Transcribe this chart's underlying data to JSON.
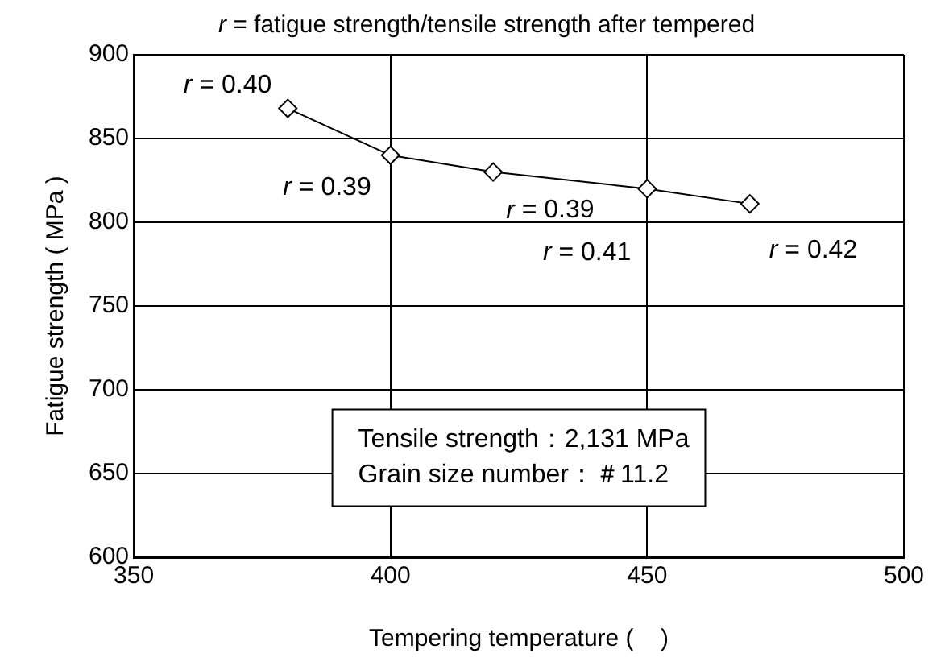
{
  "chart_data": {
    "type": "line",
    "title": "r = fatigue strength/tensile strength after tempered",
    "xlabel": "Tempering temperature (    )",
    "ylabel": "Fatigue strength ( MPa )",
    "x": [
      380,
      400,
      420,
      450,
      470
    ],
    "series": [
      {
        "color": "#000000",
        "values": [
          868,
          840,
          830,
          820,
          811
        ]
      }
    ],
    "xlim": [
      350,
      500
    ],
    "xticks": [
      350,
      400,
      450,
      500
    ],
    "ylim": [
      600,
      900
    ],
    "yticks": [
      600,
      650,
      700,
      750,
      800,
      850,
      900
    ],
    "grid": true,
    "legend": false,
    "marker": "diamond",
    "line_style": "solid",
    "annotations": [
      {
        "text": "r = 0.40",
        "x": 380,
        "y": 868
      },
      {
        "text": "r = 0.39",
        "x": 400,
        "y": 840
      },
      {
        "text": "r = 0.39",
        "x": 420,
        "y": 830
      },
      {
        "text": "r = 0.41",
        "x": 450,
        "y": 820
      },
      {
        "text": "r = 0.42",
        "x": 470,
        "y": 811
      },
      "Tensile strength：2,131 MPa",
      "Grain size number：＃11.2"
    ]
  }
}
